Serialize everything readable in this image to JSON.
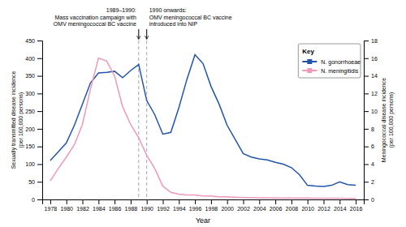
{
  "chart_data": {
    "type": "line",
    "x_label": "Year",
    "y_label": "Sexually transmitted disease incidence\n(per 100,000 persons)",
    "y2_label": "Meningococcal disease incidence\n(per 100,000 persons)",
    "x": [
      1978,
      1979,
      1980,
      1981,
      1982,
      1983,
      1984,
      1985,
      1986,
      1987,
      1988,
      1989,
      1990,
      1991,
      1992,
      1993,
      1994,
      1995,
      1996,
      1997,
      1998,
      1999,
      2000,
      2001,
      2002,
      2003,
      2004,
      2005,
      2006,
      2007,
      2008,
      2009,
      2010,
      2011,
      2012,
      2013,
      2014,
      2015,
      2016
    ],
    "series": [
      {
        "name": "N. gonorrhoeae",
        "color": "#2255aa",
        "values": [
          110,
          135,
          160,
          210,
          270,
          330,
          358,
          360,
          363,
          345,
          365,
          382,
          280,
          240,
          185,
          190,
          260,
          340,
          410,
          385,
          320,
          270,
          210,
          170,
          130,
          120,
          115,
          112,
          105,
          100,
          90,
          70,
          40,
          38,
          37,
          40,
          50,
          42,
          40
        ]
      },
      {
        "name": "N. meningitidis",
        "color": "#ee99bb",
        "axis": "y2",
        "values": [
          2.1,
          3.5,
          4.8,
          6.2,
          8.5,
          12.5,
          16.0,
          15.7,
          14.0,
          10.5,
          8.5,
          7.0,
          5.0,
          3.5,
          1.5,
          0.8,
          0.6,
          0.5,
          0.5,
          0.4,
          0.4,
          0.3,
          0.3,
          0.25,
          0.2,
          0.2,
          0.18,
          0.18,
          0.17,
          0.17,
          0.16,
          0.15,
          0.15,
          0.14,
          0.14,
          0.13,
          0.13,
          0.12,
          0.12
        ]
      }
    ],
    "xlim": [
      1977,
      2017
    ],
    "xticks": [
      1978,
      1980,
      1982,
      1984,
      1986,
      1988,
      1990,
      1992,
      1994,
      1996,
      1998,
      2000,
      2002,
      2004,
      2006,
      2008,
      2010,
      2012,
      2014,
      2016
    ],
    "ylim": [
      0,
      450
    ],
    "yticks": [
      0,
      50,
      100,
      150,
      200,
      250,
      300,
      350,
      400,
      450
    ],
    "y2lim": [
      0,
      18
    ],
    "y2ticks": [
      0,
      2,
      4,
      6,
      8,
      10,
      12,
      14,
      16,
      18
    ],
    "annotations": [
      {
        "x": 1989,
        "text": "1989–1990:\nMass vaccination campaign with\nOMV meningococcal BC vaccine"
      },
      {
        "x": 1990,
        "text": "1990 onwards:\nOMV meningococcal BC vaccine\nintroduced into NIP"
      }
    ],
    "legend": "upper right",
    "legend_title": "Key",
    "grid": false
  }
}
